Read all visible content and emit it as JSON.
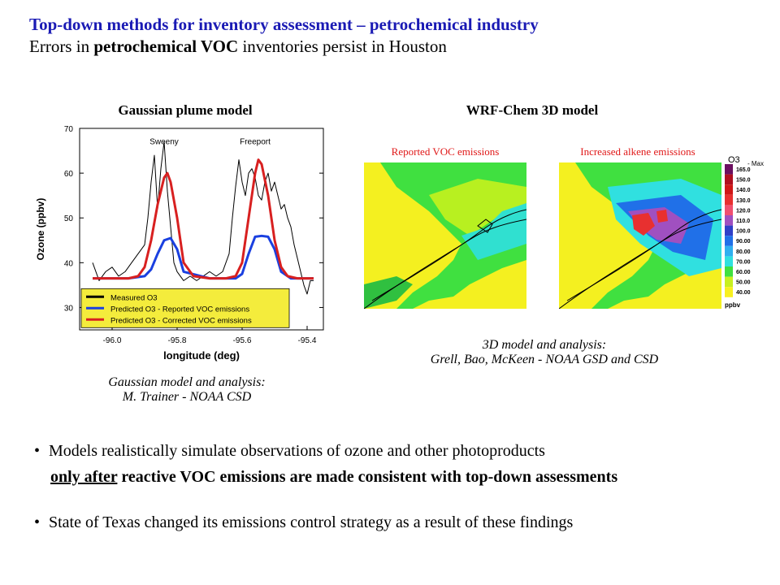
{
  "header": {
    "title": "Top-down methods for inventory assessment – petrochemical industry",
    "subtitle_pre": "Errors in ",
    "subtitle_bold": "petrochemical VOC",
    "subtitle_post": " inventories persist in Houston"
  },
  "gaussian": {
    "heading": "Gaussian plume model",
    "caption_line1": "Gaussian model and analysis:",
    "caption_line2": "M. Trainer - NOAA CSD",
    "annotations": [
      "Sweeny",
      "Freeport"
    ]
  },
  "wrf": {
    "heading": "WRF-Chem 3D model",
    "panel_left_label": "Reported VOC emissions",
    "panel_right_label": "Increased alkene emissions",
    "caption_line1": "3D model and analysis:",
    "caption_line2": "Grell, Bao, McKeen - NOAA GSD and CSD",
    "colorbar_title": "O3",
    "colorbar_marker": "Max",
    "colorbar_unit": "ppbv",
    "colorbar_levels": [
      "165.0",
      "150.0",
      "140.0",
      "130.0",
      "120.0",
      "110.0",
      "100.0",
      "90.00",
      "80.00",
      "70.00",
      "60.00",
      "50.00",
      "40.00"
    ],
    "colorbar_colors": [
      "#6b1060",
      "#b01020",
      "#d01818",
      "#e83030",
      "#f05070",
      "#a050c0",
      "#3040c8",
      "#2070e8",
      "#30b0f0",
      "#30e0e0",
      "#40e040",
      "#c8f020",
      "#f8f020"
    ]
  },
  "bullets": {
    "b1": "Models realistically simulate observations of ozone and other photoproducts",
    "b1_cont_underline": "only after",
    "b1_cont_rest": " reactive VOC emissions are made consistent with top-down assessments",
    "b2": "State of Texas changed its emissions control strategy as a result of these findings"
  },
  "chart_data": {
    "type": "line",
    "title": "",
    "xlabel": "longitude (deg)",
    "ylabel": "Ozone (ppbv)",
    "xlim": [
      -96.1,
      -95.35
    ],
    "ylim": [
      25,
      70
    ],
    "xticks": [
      -96.0,
      -95.8,
      -95.6,
      -95.4
    ],
    "xtick_labels": [
      "-96.0",
      "-95.8",
      "-95.6",
      "-95.4"
    ],
    "yticks": [
      30,
      40,
      50,
      60,
      70
    ],
    "ytick_labels": [
      "30",
      "40",
      "50",
      "60",
      "70"
    ],
    "legend_position": "bottom-left",
    "series": [
      {
        "name": "Measured O3",
        "color": "#000000",
        "x": [
          -96.06,
          -96.04,
          -96.02,
          -96.0,
          -95.98,
          -95.96,
          -95.94,
          -95.92,
          -95.9,
          -95.89,
          -95.88,
          -95.87,
          -95.86,
          -95.85,
          -95.84,
          -95.83,
          -95.82,
          -95.81,
          -95.8,
          -95.79,
          -95.78,
          -95.76,
          -95.74,
          -95.72,
          -95.7,
          -95.68,
          -95.66,
          -95.64,
          -95.63,
          -95.62,
          -95.61,
          -95.6,
          -95.59,
          -95.58,
          -95.57,
          -95.56,
          -95.55,
          -95.54,
          -95.53,
          -95.52,
          -95.51,
          -95.5,
          -95.49,
          -95.48,
          -95.47,
          -95.46,
          -95.45,
          -95.44,
          -95.43,
          -95.42,
          -95.41,
          -95.4,
          -95.39,
          -95.38
        ],
        "y": [
          40,
          36,
          38,
          39,
          37,
          38,
          40,
          42,
          44,
          50,
          58,
          64,
          52,
          61,
          67,
          56,
          48,
          40,
          38,
          37,
          36,
          37,
          36,
          37,
          38,
          37,
          38,
          42,
          50,
          57,
          63,
          58,
          55,
          60,
          61,
          59,
          55,
          54,
          58,
          60,
          56,
          58,
          55,
          52,
          53,
          50,
          48,
          44,
          41,
          38,
          35,
          33,
          36,
          36
        ]
      },
      {
        "name": "Predicted O3 - Reported VOC emissions",
        "color": "#1a40e0",
        "x": [
          -96.06,
          -95.95,
          -95.9,
          -95.88,
          -95.86,
          -95.84,
          -95.82,
          -95.8,
          -95.78,
          -95.7,
          -95.62,
          -95.6,
          -95.58,
          -95.56,
          -95.54,
          -95.52,
          -95.5,
          -95.48,
          -95.45,
          -95.38
        ],
        "y": [
          36.5,
          36.5,
          37,
          38.5,
          42,
          45,
          45.5,
          43,
          38,
          36.5,
          36.5,
          37.5,
          42,
          45.8,
          46,
          45.8,
          43,
          38,
          36.5,
          36.5
        ]
      },
      {
        "name": "Predicted O3 - Corrected VOC emissions",
        "color": "#d82020",
        "x": [
          -96.06,
          -95.95,
          -95.92,
          -95.9,
          -95.88,
          -95.86,
          -95.84,
          -95.83,
          -95.82,
          -95.8,
          -95.78,
          -95.75,
          -95.7,
          -95.65,
          -95.62,
          -95.6,
          -95.58,
          -95.56,
          -95.55,
          -95.54,
          -95.52,
          -95.5,
          -95.48,
          -95.46,
          -95.43,
          -95.38
        ],
        "y": [
          36.5,
          36.5,
          37,
          39,
          45,
          53,
          59,
          60,
          58,
          50,
          40,
          37,
          36.5,
          36.5,
          37,
          40,
          50,
          60,
          63,
          62,
          55,
          45,
          39,
          37,
          36.5,
          36.5
        ]
      }
    ]
  }
}
